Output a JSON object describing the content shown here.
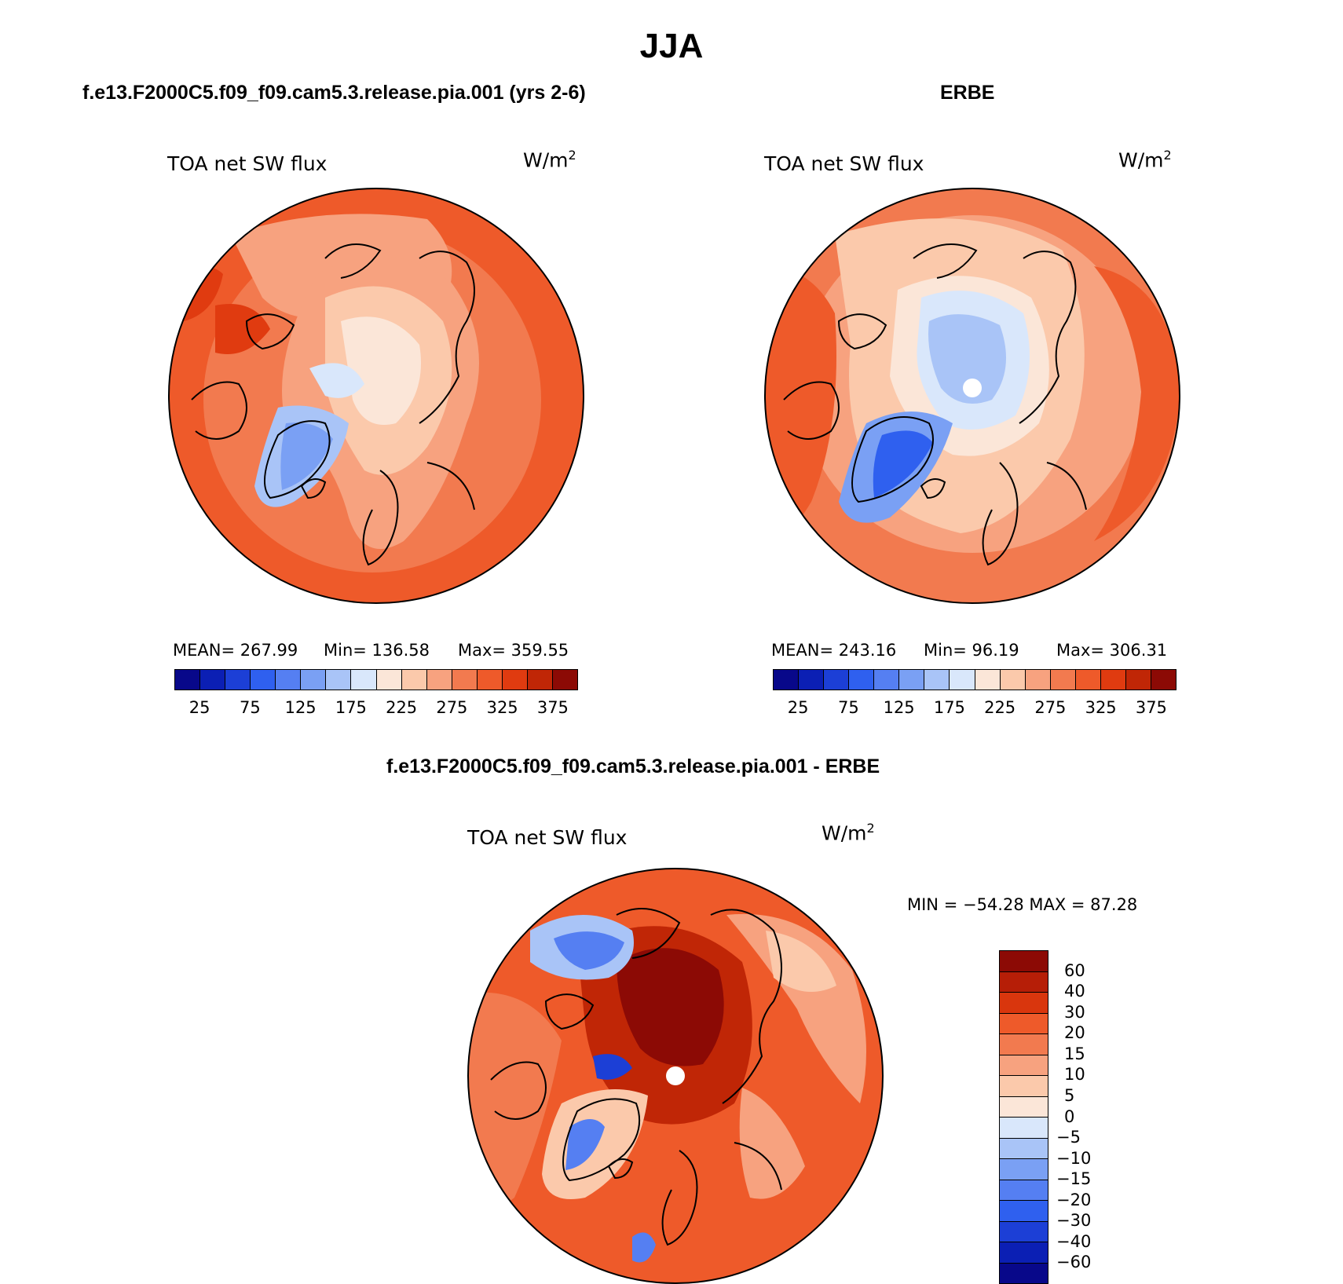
{
  "page": {
    "title": "JJA",
    "panels": {
      "model": {
        "header": "f.e13.F2000C5.f09_f09.cam5.3.release.pia.001 (yrs 2-6)",
        "variable": "TOA net SW flux",
        "units": "W/m",
        "units_exp": "2",
        "stats": {
          "mean": "MEAN= 267.99",
          "min": "Min= 136.58",
          "max": "Max= 359.55"
        },
        "field": {
          "mean": 267.99,
          "min": 136.58,
          "max": 359.55
        }
      },
      "obs": {
        "header": "ERBE",
        "variable": "TOA net SW flux",
        "units": "W/m",
        "units_exp": "2",
        "stats": {
          "mean": "MEAN= 243.16",
          "min": "Min=  96.19",
          "max": "Max= 306.31"
        },
        "field": {
          "mean": 243.16,
          "min": 96.19,
          "max": 306.31
        }
      },
      "diff": {
        "header": "f.e13.F2000C5.f09_f09.cam5.3.release.pia.001 - ERBE",
        "variable": "TOA net SW flux",
        "units": "W/m",
        "units_exp": "2",
        "stats": {
          "min_max": "MIN = −54.28 MAX =  87.28"
        },
        "field": {
          "min": -54.28,
          "max": 87.28
        }
      }
    },
    "colorbars": {
      "abs": {
        "tick_labels": [
          "25",
          "75",
          "125",
          "175",
          "225",
          "275",
          "325",
          "375"
        ],
        "colors": [
          "#08088a",
          "#0b1fb4",
          "#1c3fd6",
          "#2f60ef",
          "#557ff2",
          "#7aa0f4",
          "#a9c4f7",
          "#d9e7fb",
          "#fbe6d8",
          "#fbc9ab",
          "#f7a27f",
          "#f27a4f",
          "#ee5a2a",
          "#e03b10",
          "#c02606",
          "#8c0a05"
        ]
      },
      "diff": {
        "tick_labels": [
          "60",
          "40",
          "30",
          "20",
          "15",
          "10",
          "5",
          "0",
          "−5",
          "−10",
          "−15",
          "−20",
          "−30",
          "−40",
          "−60"
        ],
        "colors": [
          "#8c0a05",
          "#b61e07",
          "#d9360d",
          "#ee5a2a",
          "#f27a4f",
          "#f7a27f",
          "#fbc9ab",
          "#fbe6d8",
          "#d9e7fb",
          "#a9c4f7",
          "#7aa0f4",
          "#557ff2",
          "#2f60ef",
          "#1c3fd6",
          "#0b1fb4",
          "#08088a"
        ]
      }
    }
  }
}
